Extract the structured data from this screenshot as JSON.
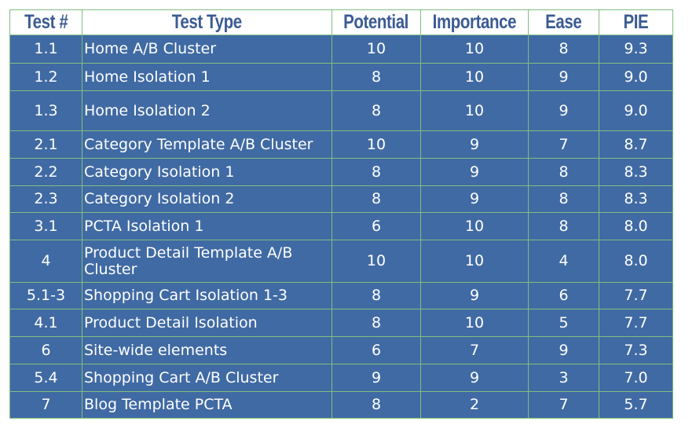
{
  "table": {
    "headers": {
      "test_num": "Test #",
      "test_type": "Test Type",
      "potential": "Potential",
      "importance": "Importance",
      "ease": "Ease",
      "pie": "PIE"
    },
    "rows": [
      {
        "test_num": "1.1",
        "test_type": "Home A/B Cluster",
        "potential": "10",
        "importance": "10",
        "ease": "8",
        "pie": "9.3"
      },
      {
        "test_num": "1.2",
        "test_type": "Home Isolation 1",
        "potential": "8",
        "importance": "10",
        "ease": "9",
        "pie": "9.0"
      },
      {
        "test_num": "1.3",
        "test_type": "Home Isolation 2",
        "potential": "8",
        "importance": "10",
        "ease": "9",
        "pie": "9.0"
      },
      {
        "test_num": "2.1",
        "test_type": "Category Template A/B Cluster",
        "potential": "10",
        "importance": "9",
        "ease": "7",
        "pie": "8.7"
      },
      {
        "test_num": "2.2",
        "test_type": "Category Isolation 1",
        "potential": "8",
        "importance": "9",
        "ease": "8",
        "pie": "8.3"
      },
      {
        "test_num": "2.3",
        "test_type": "Category Isolation 2",
        "potential": "8",
        "importance": "9",
        "ease": "8",
        "pie": "8.3"
      },
      {
        "test_num": "3.1",
        "test_type": "PCTA Isolation 1",
        "potential": "6",
        "importance": "10",
        "ease": "8",
        "pie": "8.0"
      },
      {
        "test_num": "4",
        "test_type": "Product Detail Template A/B Cluster",
        "potential": "10",
        "importance": "10",
        "ease": "4",
        "pie": "8.0"
      },
      {
        "test_num": "5.1-3",
        "test_type": "Shopping Cart Isolation 1-3",
        "potential": "8",
        "importance": "9",
        "ease": "6",
        "pie": "7.7"
      },
      {
        "test_num": "4.1",
        "test_type": "Product Detail Isolation",
        "potential": "8",
        "importance": "10",
        "ease": "5",
        "pie": "7.7"
      },
      {
        "test_num": "6",
        "test_type": "Site-wide elements",
        "potential": "6",
        "importance": "7",
        "ease": "9",
        "pie": "7.3"
      },
      {
        "test_num": "5.4",
        "test_type": "Shopping Cart A/B Cluster",
        "potential": "9",
        "importance": "9",
        "ease": "3",
        "pie": "7.0"
      },
      {
        "test_num": "7",
        "test_type": "Blog Template PCTA",
        "potential": "8",
        "importance": "2",
        "ease": "7",
        "pie": "5.7"
      }
    ]
  },
  "colors": {
    "header_text": "#3b5b94",
    "header_bg": "#ffffff",
    "body_bg": "#406aa3",
    "body_text": "#ffffff",
    "grid": "#7fbf7f"
  }
}
